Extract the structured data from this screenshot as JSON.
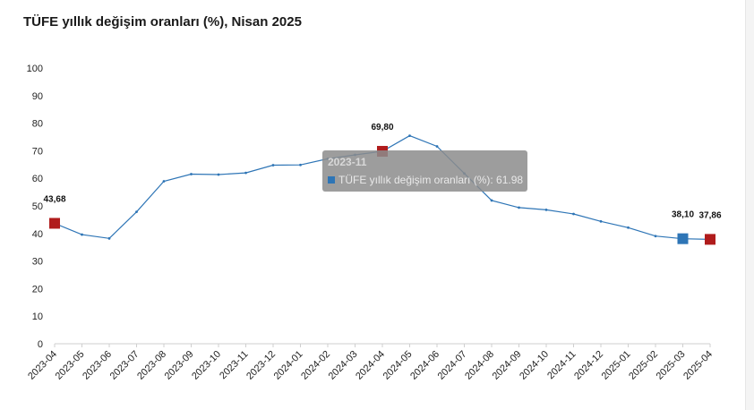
{
  "title": "TÜFE yıllık değişim oranları (%), Nisan 2025",
  "colors": {
    "line": "#2e75b6",
    "highlight_red": "#b01c1c",
    "highlight_blue": "#2e75b6",
    "axis": "#cfcfcf"
  },
  "tooltip": {
    "date": "2023-11",
    "series_label": "TÜFE yıllık değişim oranları (%): 61.98"
  },
  "chart_data": {
    "type": "line",
    "title": "TÜFE yıllık değişim oranları (%), Nisan 2025",
    "xlabel": "",
    "ylabel": "",
    "ylim": [
      0,
      100
    ],
    "yticks": [
      0,
      10,
      20,
      30,
      40,
      50,
      60,
      70,
      80,
      90,
      100
    ],
    "grid": false,
    "legend": "none",
    "categories": [
      "2023-04",
      "2023-05",
      "2023-06",
      "2023-07",
      "2023-08",
      "2023-09",
      "2023-10",
      "2023-11",
      "2023-12",
      "2024-01",
      "2024-02",
      "2024-03",
      "2024-04",
      "2024-05",
      "2024-06",
      "2024-07",
      "2024-08",
      "2024-09",
      "2024-10",
      "2024-11",
      "2024-12",
      "2025-01",
      "2025-02",
      "2025-03",
      "2025-04"
    ],
    "series": [
      {
        "values": [
          43.68,
          39.59,
          38.21,
          47.83,
          58.94,
          61.53,
          61.36,
          61.98,
          64.77,
          64.86,
          67.07,
          68.5,
          69.8,
          75.45,
          71.6,
          61.78,
          51.97,
          49.38,
          48.58,
          47.09,
          44.38,
          42.12,
          39.05,
          38.1,
          37.86
        ]
      }
    ],
    "highlighted_points": [
      {
        "category": "2023-04",
        "value": 43.68,
        "label": "43,68",
        "color": "red"
      },
      {
        "category": "2024-04",
        "value": 69.8,
        "label": "69,80",
        "color": "red"
      },
      {
        "category": "2025-03",
        "value": 38.1,
        "label": "38,10",
        "color": "blue"
      },
      {
        "category": "2025-04",
        "value": 37.86,
        "label": "37,86",
        "color": "red"
      }
    ]
  }
}
